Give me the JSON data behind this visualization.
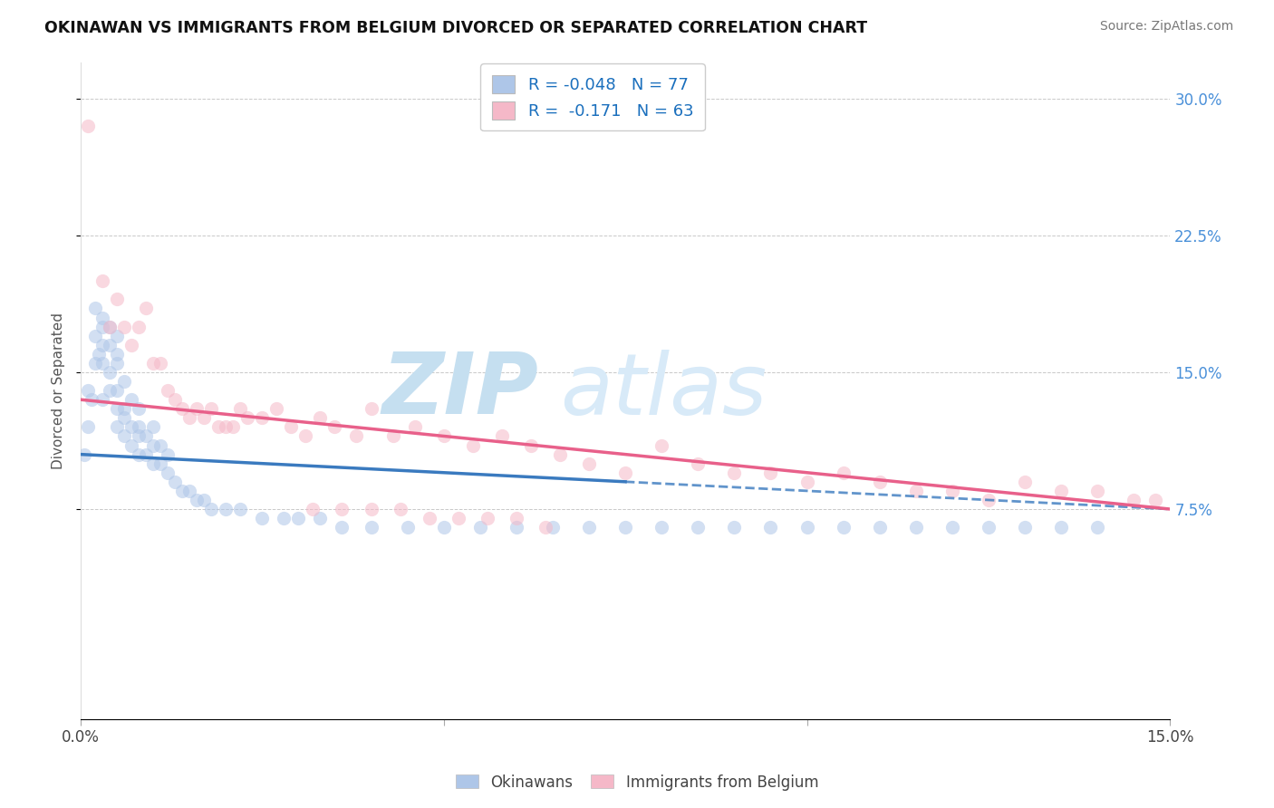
{
  "title": "OKINAWAN VS IMMIGRANTS FROM BELGIUM DIVORCED OR SEPARATED CORRELATION CHART",
  "source": "Source: ZipAtlas.com",
  "ylabel": "Divorced or Separated",
  "ytick_labels": [
    "7.5%",
    "15.0%",
    "22.5%",
    "30.0%"
  ],
  "ytick_values": [
    0.075,
    0.15,
    0.225,
    0.3
  ],
  "xlim": [
    0.0,
    0.15
  ],
  "ylim": [
    -0.04,
    0.32
  ],
  "color_blue": "#aec6e8",
  "color_pink": "#f5b8c8",
  "line_blue": "#3a7abf",
  "line_pink": "#e8608a",
  "watermark_zip": "ZIP",
  "watermark_atlas": "atlas",
  "okinawan_x": [
    0.0005,
    0.001,
    0.001,
    0.0015,
    0.002,
    0.002,
    0.002,
    0.0025,
    0.003,
    0.003,
    0.003,
    0.003,
    0.003,
    0.004,
    0.004,
    0.004,
    0.004,
    0.005,
    0.005,
    0.005,
    0.005,
    0.005,
    0.005,
    0.006,
    0.006,
    0.006,
    0.006,
    0.007,
    0.007,
    0.007,
    0.008,
    0.008,
    0.008,
    0.008,
    0.009,
    0.009,
    0.01,
    0.01,
    0.01,
    0.011,
    0.011,
    0.012,
    0.012,
    0.013,
    0.014,
    0.015,
    0.016,
    0.017,
    0.018,
    0.02,
    0.022,
    0.025,
    0.028,
    0.03,
    0.033,
    0.036,
    0.04,
    0.045,
    0.05,
    0.055,
    0.06,
    0.065,
    0.07,
    0.075,
    0.08,
    0.085,
    0.09,
    0.095,
    0.1,
    0.105,
    0.11,
    0.115,
    0.12,
    0.125,
    0.13,
    0.135,
    0.14
  ],
  "okinawan_y": [
    0.105,
    0.14,
    0.12,
    0.135,
    0.155,
    0.17,
    0.185,
    0.16,
    0.135,
    0.155,
    0.165,
    0.175,
    0.18,
    0.14,
    0.15,
    0.165,
    0.175,
    0.12,
    0.13,
    0.14,
    0.155,
    0.16,
    0.17,
    0.115,
    0.125,
    0.13,
    0.145,
    0.11,
    0.12,
    0.135,
    0.105,
    0.115,
    0.12,
    0.13,
    0.105,
    0.115,
    0.1,
    0.11,
    0.12,
    0.1,
    0.11,
    0.095,
    0.105,
    0.09,
    0.085,
    0.085,
    0.08,
    0.08,
    0.075,
    0.075,
    0.075,
    0.07,
    0.07,
    0.07,
    0.07,
    0.065,
    0.065,
    0.065,
    0.065,
    0.065,
    0.065,
    0.065,
    0.065,
    0.065,
    0.065,
    0.065,
    0.065,
    0.065,
    0.065,
    0.065,
    0.065,
    0.065,
    0.065,
    0.065,
    0.065,
    0.065,
    0.065
  ],
  "belgium_x": [
    0.001,
    0.003,
    0.004,
    0.005,
    0.006,
    0.007,
    0.008,
    0.009,
    0.01,
    0.011,
    0.012,
    0.013,
    0.014,
    0.015,
    0.016,
    0.017,
    0.018,
    0.019,
    0.02,
    0.021,
    0.022,
    0.023,
    0.025,
    0.027,
    0.029,
    0.031,
    0.033,
    0.035,
    0.038,
    0.04,
    0.043,
    0.046,
    0.05,
    0.054,
    0.058,
    0.062,
    0.066,
    0.07,
    0.075,
    0.08,
    0.085,
    0.09,
    0.095,
    0.1,
    0.105,
    0.11,
    0.115,
    0.12,
    0.125,
    0.13,
    0.135,
    0.14,
    0.145,
    0.148,
    0.032,
    0.036,
    0.04,
    0.044,
    0.048,
    0.052,
    0.056,
    0.06,
    0.064
  ],
  "belgium_y": [
    0.285,
    0.2,
    0.175,
    0.19,
    0.175,
    0.165,
    0.175,
    0.185,
    0.155,
    0.155,
    0.14,
    0.135,
    0.13,
    0.125,
    0.13,
    0.125,
    0.13,
    0.12,
    0.12,
    0.12,
    0.13,
    0.125,
    0.125,
    0.13,
    0.12,
    0.115,
    0.125,
    0.12,
    0.115,
    0.13,
    0.115,
    0.12,
    0.115,
    0.11,
    0.115,
    0.11,
    0.105,
    0.1,
    0.095,
    0.11,
    0.1,
    0.095,
    0.095,
    0.09,
    0.095,
    0.09,
    0.085,
    0.085,
    0.08,
    0.09,
    0.085,
    0.085,
    0.08,
    0.08,
    0.075,
    0.075,
    0.075,
    0.075,
    0.07,
    0.07,
    0.07,
    0.07,
    0.065
  ],
  "ok_trend_x": [
    0.0,
    0.075
  ],
  "ok_trend_solid_end": 0.075,
  "ok_trend_dashed_start": 0.075,
  "ok_trend_dashed_end": 0.15,
  "ok_trend_y_start": 0.105,
  "ok_trend_y_mid": 0.09,
  "ok_trend_y_end": 0.075,
  "bel_trend_x_start": 0.0,
  "bel_trend_x_end": 0.15,
  "bel_trend_y_start": 0.135,
  "bel_trend_y_end": 0.075
}
